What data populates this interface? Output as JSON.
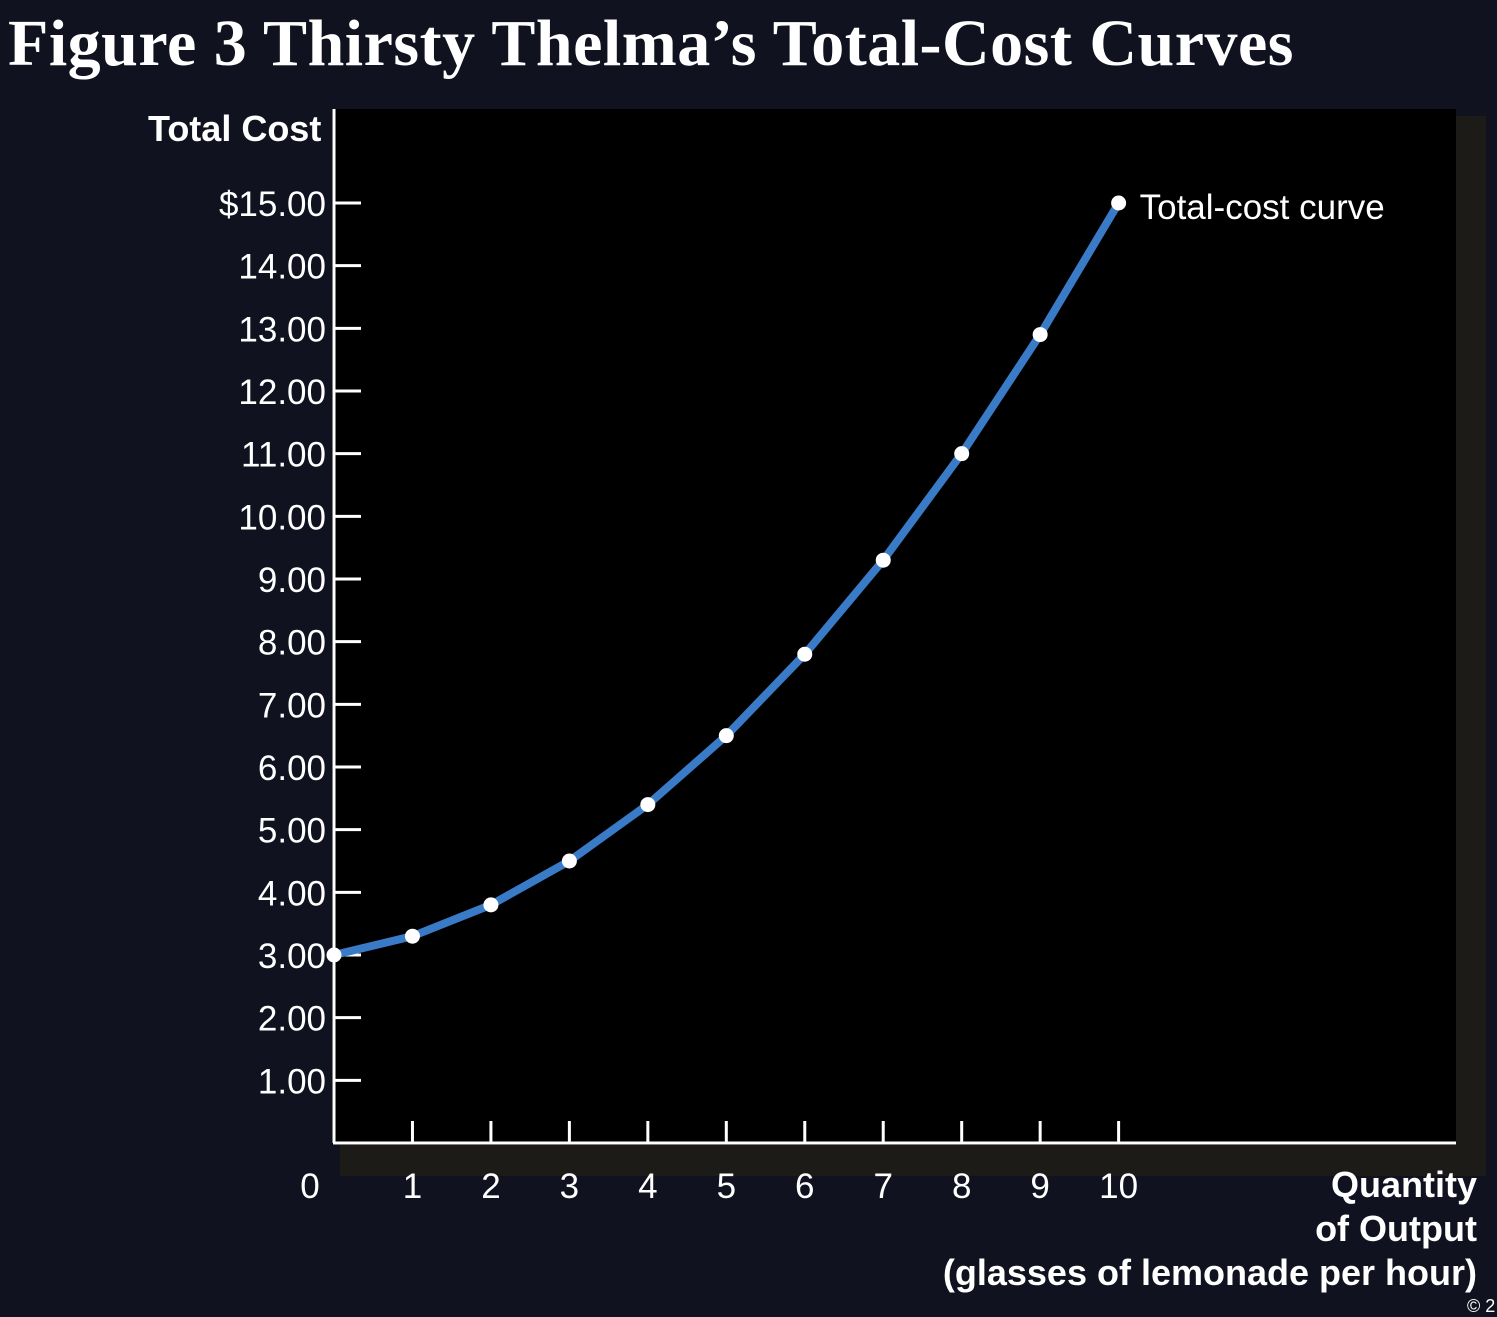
{
  "title": "Figure 3 Thirsty Thelma’s Total-Cost Curves",
  "copyright": "© 2",
  "colors": {
    "background": "#10131f",
    "plot_background": "#000000",
    "curve": "#3a7bc8",
    "points": "#ffffff",
    "axis": "#ffffff"
  },
  "chart_data": {
    "type": "line",
    "ylabel": "Total Cost",
    "xlabel_lines": [
      "Quantity",
      "of Output",
      "(glasses of lemonade per hour)"
    ],
    "ylim": [
      0,
      16.5
    ],
    "xlim": [
      0,
      14.3
    ],
    "y_ticks": [
      {
        "value": 1,
        "label": "1.00"
      },
      {
        "value": 2,
        "label": "2.00"
      },
      {
        "value": 3,
        "label": "3.00"
      },
      {
        "value": 4,
        "label": "4.00"
      },
      {
        "value": 5,
        "label": "5.00"
      },
      {
        "value": 6,
        "label": "6.00"
      },
      {
        "value": 7,
        "label": "7.00"
      },
      {
        "value": 8,
        "label": "8.00"
      },
      {
        "value": 9,
        "label": "9.00"
      },
      {
        "value": 10,
        "label": "10.00"
      },
      {
        "value": 11,
        "label": "11.00"
      },
      {
        "value": 12,
        "label": "12.00"
      },
      {
        "value": 13,
        "label": "13.00"
      },
      {
        "value": 14,
        "label": "14.00"
      },
      {
        "value": 15,
        "label": "$15.00"
      }
    ],
    "x_ticks": [
      {
        "value": 0,
        "label": "0"
      },
      {
        "value": 1,
        "label": "1"
      },
      {
        "value": 2,
        "label": "2"
      },
      {
        "value": 3,
        "label": "3"
      },
      {
        "value": 4,
        "label": "4"
      },
      {
        "value": 5,
        "label": "5"
      },
      {
        "value": 6,
        "label": "6"
      },
      {
        "value": 7,
        "label": "7"
      },
      {
        "value": 8,
        "label": "8"
      },
      {
        "value": 9,
        "label": "9"
      },
      {
        "value": 10,
        "label": "10"
      }
    ],
    "series": [
      {
        "name": "Total-cost curve",
        "x": [
          0,
          1,
          2,
          3,
          4,
          5,
          6,
          7,
          8,
          9,
          10
        ],
        "y": [
          3.0,
          3.3,
          3.8,
          4.5,
          5.4,
          6.5,
          7.8,
          9.3,
          11.0,
          12.9,
          15.0
        ]
      }
    ]
  }
}
